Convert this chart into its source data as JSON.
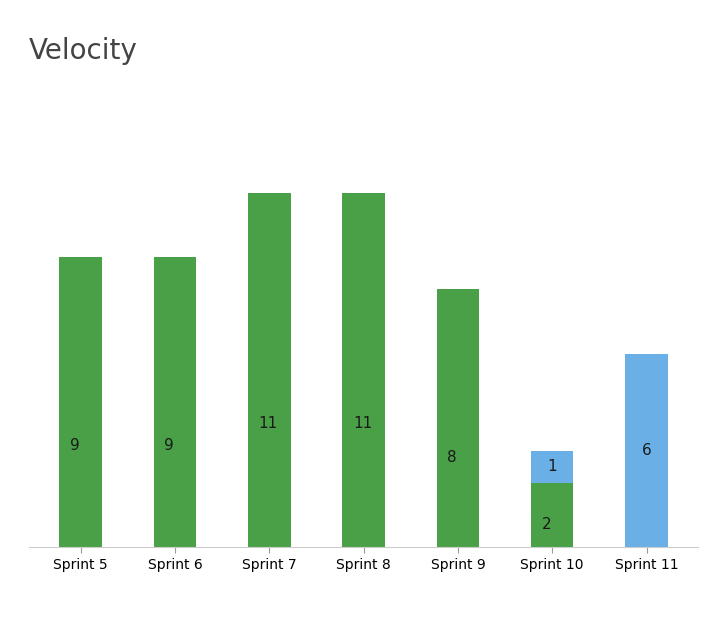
{
  "title": "Velocity",
  "categories": [
    "Sprint 5",
    "Sprint 6",
    "Sprint 7",
    "Sprint 8",
    "Sprint 9",
    "Sprint 10",
    "Sprint 11"
  ],
  "completed": [
    9,
    9,
    11,
    11,
    8,
    2,
    0
  ],
  "in_progress": [
    0,
    0,
    0,
    0,
    0,
    1,
    6
  ],
  "completed_color": "#4aA046",
  "in_progress_color": "#6aafe6",
  "label_color_completed": "#1a1a1a",
  "label_color_inprogress": "#1a1a1a",
  "title_fontsize": 20,
  "label_fontsize": 11,
  "tick_fontsize": 10,
  "background_color": "#ffffff",
  "bar_width": 0.45,
  "ylim": [
    0,
    13.5
  ]
}
